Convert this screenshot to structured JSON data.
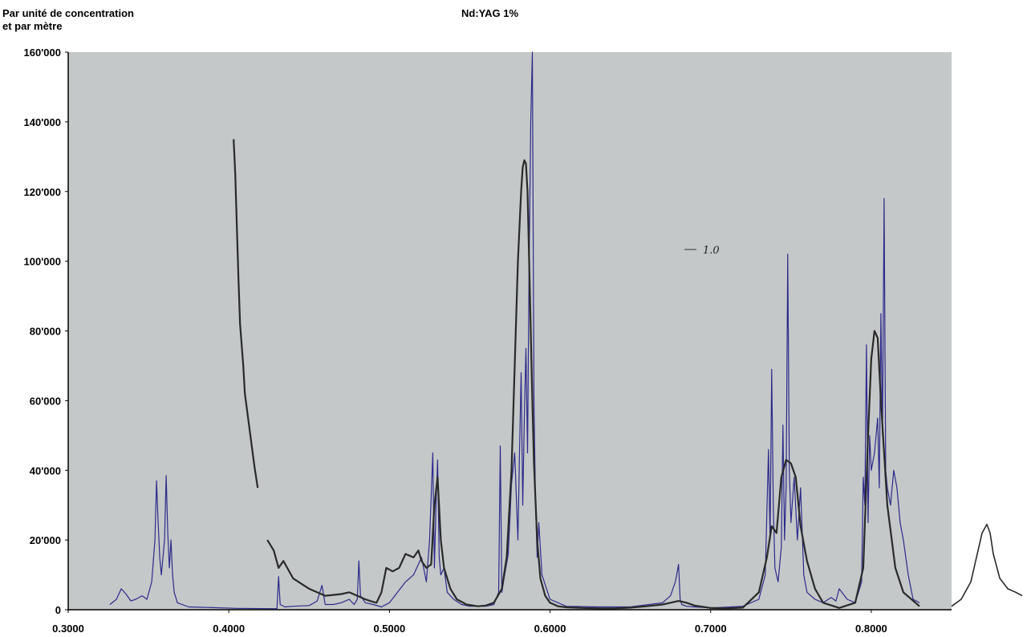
{
  "chart_data": {
    "type": "line",
    "title": "Nd:YAG 1%",
    "ylabel_line1": "Par unité de concentration",
    "ylabel_line2": "et par mètre",
    "xlabel": "",
    "xlim": [
      0.3,
      0.85
    ],
    "ylim": [
      0,
      160000
    ],
    "grid": false,
    "legend": "none",
    "background": "#c4c8c8",
    "x_ticks": [
      {
        "value": 0.3,
        "label": "0.3000"
      },
      {
        "value": 0.4,
        "label": "0.4000"
      },
      {
        "value": 0.5,
        "label": "0.5000"
      },
      {
        "value": 0.6,
        "label": "0.6000"
      },
      {
        "value": 0.7,
        "label": "0.7000"
      },
      {
        "value": 0.8,
        "label": "0.8000"
      }
    ],
    "y_ticks": [
      {
        "value": 0,
        "label": "0"
      },
      {
        "value": 20000,
        "label": "20'000"
      },
      {
        "value": 40000,
        "label": "40'000"
      },
      {
        "value": 60000,
        "label": "60'000"
      },
      {
        "value": 80000,
        "label": "80'000"
      },
      {
        "value": 100000,
        "label": "100'000"
      },
      {
        "value": 120000,
        "label": "120'000"
      },
      {
        "value": 140000,
        "label": "140'000"
      },
      {
        "value": 160000,
        "label": "160'000"
      }
    ],
    "annotation": "1.0",
    "series": [
      {
        "color": "#2e2a8c",
        "width": 1.2,
        "x": [
          0.326,
          0.33,
          0.333,
          0.336,
          0.339,
          0.342,
          0.346,
          0.349,
          0.352,
          0.354,
          0.355,
          0.356,
          0.357,
          0.358,
          0.36,
          0.361,
          0.362,
          0.363,
          0.364,
          0.365,
          0.366,
          0.368,
          0.375,
          0.39,
          0.405,
          0.43,
          0.431,
          0.432,
          0.435,
          0.44,
          0.45,
          0.455,
          0.458,
          0.46,
          0.465,
          0.47,
          0.475,
          0.478,
          0.48,
          0.481,
          0.482,
          0.485,
          0.49,
          0.495,
          0.5,
          0.505,
          0.51,
          0.515,
          0.52,
          0.523,
          0.525,
          0.527,
          0.528,
          0.529,
          0.53,
          0.531,
          0.532,
          0.534,
          0.536,
          0.54,
          0.545,
          0.55,
          0.56,
          0.565,
          0.568,
          0.569,
          0.57,
          0.571,
          0.574,
          0.576,
          0.578,
          0.58,
          0.581,
          0.582,
          0.583,
          0.584,
          0.585,
          0.586,
          0.587,
          0.588,
          0.589,
          0.59,
          0.591,
          0.592,
          0.593,
          0.595,
          0.6,
          0.61,
          0.63,
          0.65,
          0.67,
          0.675,
          0.678,
          0.68,
          0.681,
          0.682,
          0.685,
          0.69,
          0.7,
          0.72,
          0.73,
          0.734,
          0.736,
          0.737,
          0.738,
          0.739,
          0.74,
          0.742,
          0.744,
          0.745,
          0.746,
          0.747,
          0.748,
          0.749,
          0.75,
          0.752,
          0.754,
          0.756,
          0.758,
          0.76,
          0.765,
          0.77,
          0.775,
          0.778,
          0.78,
          0.785,
          0.79,
          0.792,
          0.794,
          0.795,
          0.796,
          0.797,
          0.798,
          0.799,
          0.8,
          0.802,
          0.804,
          0.805,
          0.806,
          0.807,
          0.808,
          0.809,
          0.81,
          0.812,
          0.814,
          0.816,
          0.818,
          0.82,
          0.823,
          0.826,
          0.83
        ],
        "y": [
          1500,
          3000,
          6000,
          4500,
          2500,
          3000,
          4000,
          3000,
          8000,
          20000,
          37000,
          25000,
          15000,
          10000,
          20000,
          38500,
          22000,
          12000,
          20000,
          10000,
          5000,
          2000,
          800,
          600,
          400,
          300,
          9500,
          1500,
          800,
          1000,
          1200,
          2500,
          7000,
          1500,
          1500,
          2000,
          3000,
          1500,
          3000,
          14000,
          4000,
          2000,
          1500,
          800,
          2000,
          5000,
          8000,
          10000,
          15000,
          8000,
          20000,
          45000,
          12000,
          30000,
          43000,
          15000,
          10000,
          12000,
          5000,
          3000,
          1500,
          1000,
          1000,
          1500,
          5000,
          47000,
          5000,
          8000,
          16000,
          36000,
          45000,
          20000,
          45000,
          68000,
          30000,
          55000,
          75000,
          45000,
          100000,
          140000,
          160000,
          60000,
          30000,
          15000,
          25000,
          10000,
          3000,
          1000,
          800,
          800,
          2000,
          4000,
          8000,
          13000,
          3000,
          1500,
          1000,
          800,
          500,
          1000,
          3000,
          10000,
          46000,
          20000,
          69000,
          30000,
          12000,
          8000,
          18000,
          53000,
          20000,
          35000,
          102000,
          40000,
          25000,
          38000,
          20000,
          35000,
          10000,
          5000,
          3000,
          2000,
          3500,
          2500,
          6000,
          3000,
          2000,
          5000,
          8000,
          38000,
          30000,
          76000,
          25000,
          50000,
          40000,
          45000,
          55000,
          35000,
          85000,
          50000,
          118000,
          40000,
          35000,
          30000,
          40000,
          35000,
          25000,
          20000,
          10000,
          3000,
          2000
        ]
      },
      {
        "color": "#2a2a2a",
        "width": 2.2,
        "x": [
          0.403,
          0.404,
          0.405,
          0.406,
          0.407,
          0.408,
          0.409,
          0.41,
          0.412,
          0.414,
          0.416,
          0.418
        ],
        "y": [
          135000,
          125000,
          110000,
          95000,
          82000,
          76000,
          70000,
          62000,
          55000,
          48000,
          41000,
          35000
        ]
      },
      {
        "color": "#2a2a2a",
        "width": 2.2,
        "x": [
          0.424,
          0.428,
          0.431,
          0.434,
          0.44,
          0.45,
          0.46,
          0.47,
          0.475,
          0.48,
          0.485,
          0.488,
          0.492,
          0.495,
          0.498,
          0.502,
          0.506,
          0.51,
          0.515,
          0.518,
          0.52,
          0.523,
          0.526,
          0.528,
          0.53,
          0.532,
          0.534,
          0.538,
          0.542,
          0.548,
          0.555,
          0.56,
          0.565,
          0.57,
          0.573,
          0.576,
          0.578,
          0.58,
          0.582,
          0.583,
          0.584,
          0.585,
          0.586,
          0.587,
          0.588,
          0.589,
          0.59,
          0.592,
          0.594,
          0.597,
          0.6,
          0.605,
          0.61,
          0.62,
          0.63,
          0.64,
          0.65,
          0.66,
          0.67,
          0.675,
          0.68,
          0.685,
          0.69,
          0.7,
          0.71,
          0.72,
          0.73,
          0.735,
          0.738,
          0.741,
          0.744,
          0.747,
          0.75,
          0.753,
          0.756,
          0.76,
          0.765,
          0.77,
          0.78,
          0.79,
          0.795,
          0.798,
          0.8,
          0.802,
          0.804,
          0.806,
          0.808,
          0.81,
          0.815,
          0.82,
          0.83
        ],
        "y": [
          20000,
          17000,
          12000,
          14000,
          9000,
          6000,
          4000,
          4500,
          5000,
          4000,
          3000,
          2500,
          2000,
          5000,
          12000,
          11000,
          12000,
          16000,
          15000,
          17000,
          14000,
          12000,
          13000,
          30000,
          38000,
          20000,
          12000,
          6000,
          3000,
          1500,
          1000,
          1200,
          2000,
          6000,
          15000,
          40000,
          70000,
          100000,
          120000,
          127000,
          129000,
          128000,
          120000,
          100000,
          80000,
          60000,
          42000,
          20000,
          9000,
          4000,
          2000,
          1000,
          700,
          500,
          400,
          400,
          600,
          1000,
          1500,
          2000,
          2500,
          2000,
          1200,
          500,
          400,
          600,
          5000,
          15000,
          24000,
          22000,
          38000,
          43000,
          42000,
          38000,
          24000,
          14000,
          6000,
          2000,
          500,
          2000,
          12000,
          50000,
          72000,
          80000,
          78000,
          60000,
          45000,
          30000,
          12000,
          5000,
          1000
        ]
      },
      {
        "color": "#2a2a2a",
        "width": 1.6,
        "x": [
          0.85,
          0.856,
          0.862,
          0.866,
          0.869,
          0.872,
          0.874,
          0.876,
          0.88,
          0.885,
          0.89,
          0.894
        ],
        "y": [
          1000,
          3000,
          8000,
          16000,
          22000,
          24500,
          22000,
          16000,
          9000,
          6000,
          5000,
          4000
        ]
      }
    ]
  }
}
